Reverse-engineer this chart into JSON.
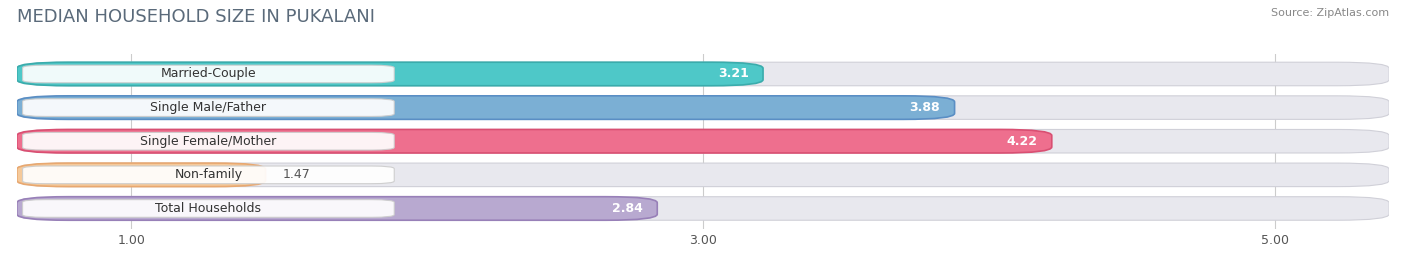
{
  "title": "MEDIAN HOUSEHOLD SIZE IN PUKALANI",
  "source": "Source: ZipAtlas.com",
  "categories": [
    "Married-Couple",
    "Single Male/Father",
    "Single Female/Mother",
    "Non-family",
    "Total Households"
  ],
  "values": [
    3.21,
    3.88,
    4.22,
    1.47,
    2.84
  ],
  "bar_colors": [
    "#4EC8C8",
    "#7BAFD4",
    "#EE6F8E",
    "#F5C99A",
    "#B8A9D0"
  ],
  "bar_edge_colors": [
    "#3AACAC",
    "#5A8EC4",
    "#D94F72",
    "#E8A870",
    "#9880B8"
  ],
  "value_colors": [
    "#555555",
    "#ffffff",
    "#ffffff",
    "#555555",
    "#555555"
  ],
  "xlim": [
    0.6,
    5.4
  ],
  "xstart": 0.6,
  "xticks": [
    1.0,
    3.0,
    5.0
  ],
  "xtick_labels": [
    "1.00",
    "3.00",
    "5.00"
  ],
  "background_color": "#ffffff",
  "bar_bg_color": "#eeeeee",
  "title_fontsize": 13,
  "label_fontsize": 9,
  "value_fontsize": 9,
  "bar_height": 0.7,
  "bar_gap": 0.15
}
